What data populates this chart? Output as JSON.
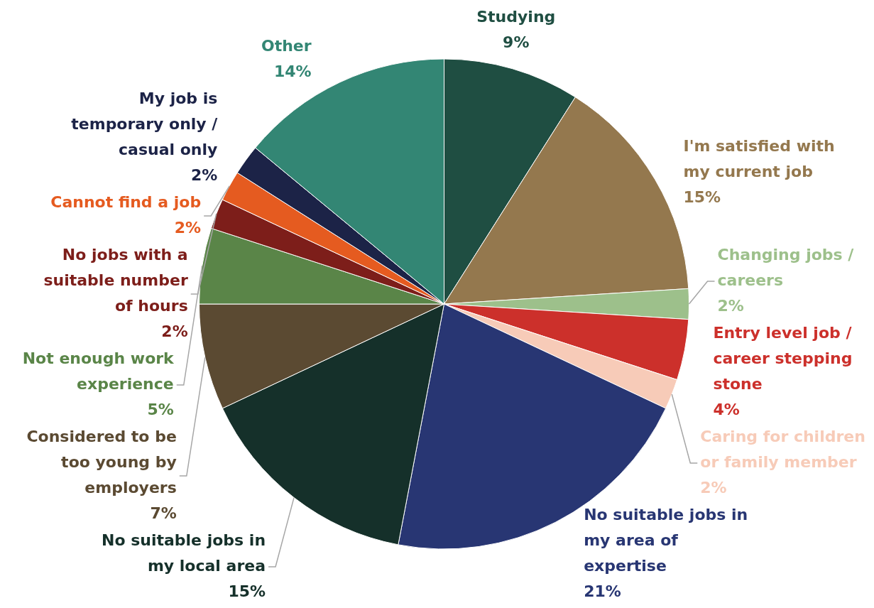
{
  "chart_data": {
    "type": "pie",
    "categories": [
      "Studying",
      "I'm satisfied with my current job",
      "Changing jobs / careers",
      "Entry level job / career stepping stone",
      "Caring for children or family member",
      "No suitable jobs in my area of expertise",
      "No suitable jobs in my local area",
      "Considered to be too young by employers",
      "Not enough work experience",
      "No jobs with a suitable number of hours",
      "Cannot find a job",
      "My job is temporary only / casual only",
      "Other"
    ],
    "values": [
      9,
      15,
      2,
      4,
      2,
      21,
      15,
      7,
      5,
      2,
      2,
      2,
      14
    ],
    "colors": [
      "#1f4e42",
      "#94784e",
      "#9dc08b",
      "#cc302b",
      "#f7cbb8",
      "#283673",
      "#15302a",
      "#5b4a32",
      "#5a8548",
      "#7d1e1a",
      "#e55b20",
      "#1c2347",
      "#338674"
    ],
    "value_labels": [
      "9%",
      "15%",
      "2%",
      "4%",
      "2%",
      "21%",
      "15%",
      "7%",
      "5%",
      "2%",
      "2%",
      "2%",
      "14%"
    ],
    "legend": false
  }
}
